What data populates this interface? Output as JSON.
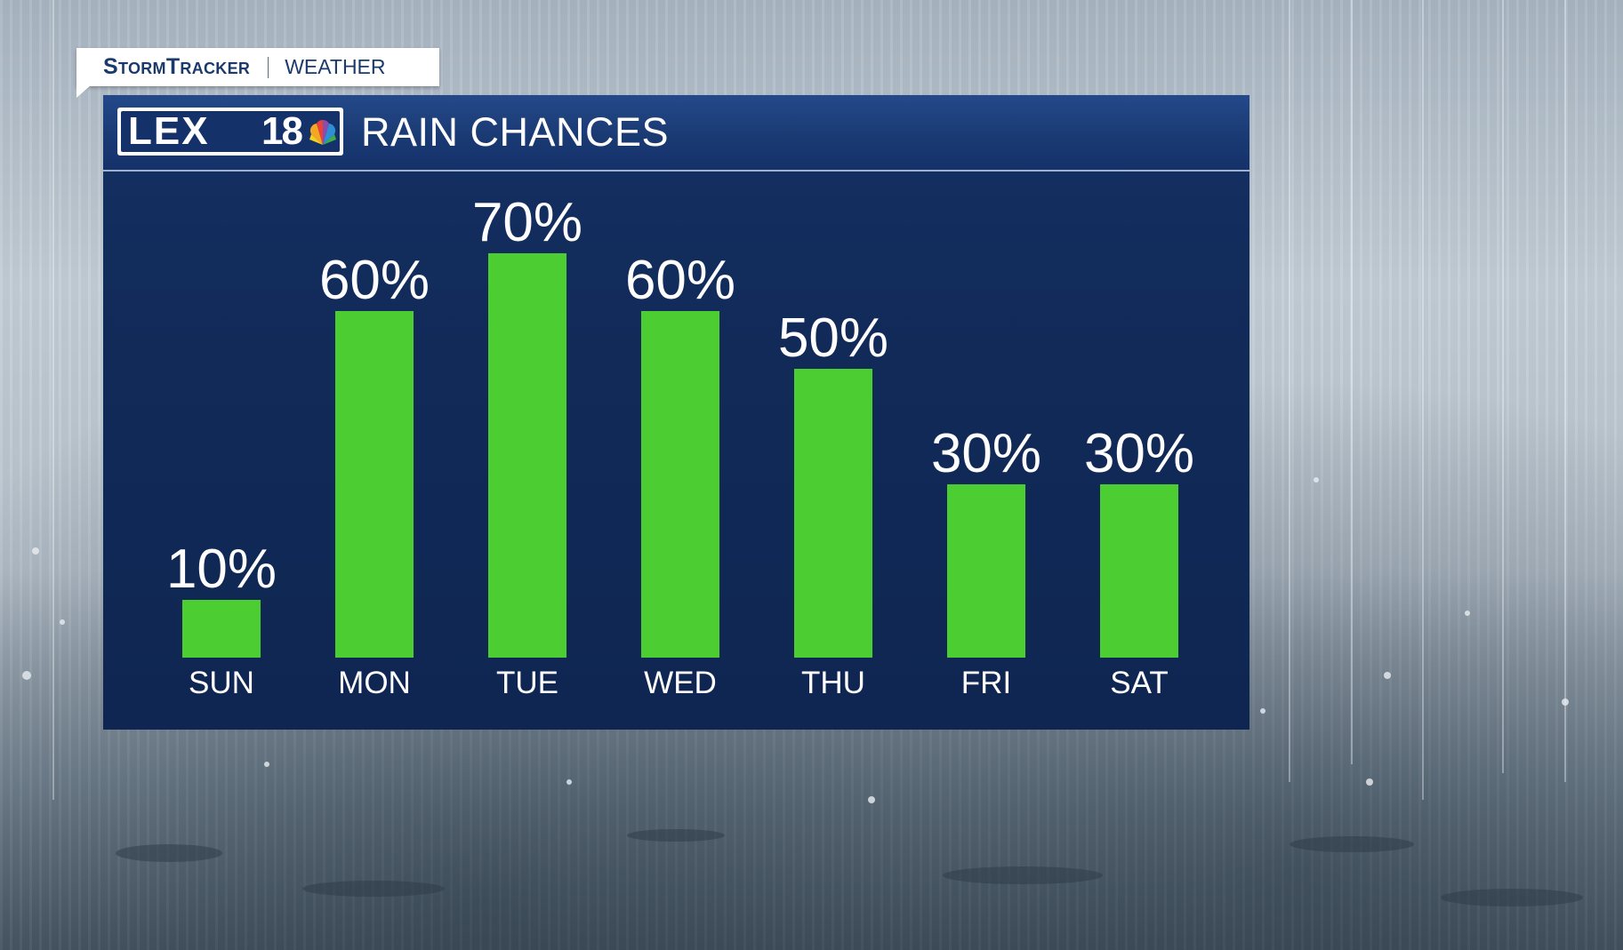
{
  "brand_tag": {
    "brand": "StormTracker",
    "section": "WEATHER"
  },
  "header": {
    "logo_text": "LEX",
    "logo_number": "18",
    "title": "RAIN CHANCES"
  },
  "colors": {
    "bar": "#4ccd32",
    "panel": "#112a58",
    "header": "#1a3a73",
    "text": "#ffffff"
  },
  "chart_data": {
    "type": "bar",
    "title": "RAIN CHANCES",
    "categories": [
      "SUN",
      "MON",
      "TUE",
      "WED",
      "THU",
      "FRI",
      "SAT"
    ],
    "values": [
      10,
      60,
      70,
      60,
      50,
      30,
      30
    ],
    "data_labels": [
      "10%",
      "60%",
      "70%",
      "60%",
      "50%",
      "30%",
      "30%"
    ],
    "unit": "%",
    "ylim": [
      0,
      100
    ],
    "grid": false,
    "legend": "none"
  }
}
